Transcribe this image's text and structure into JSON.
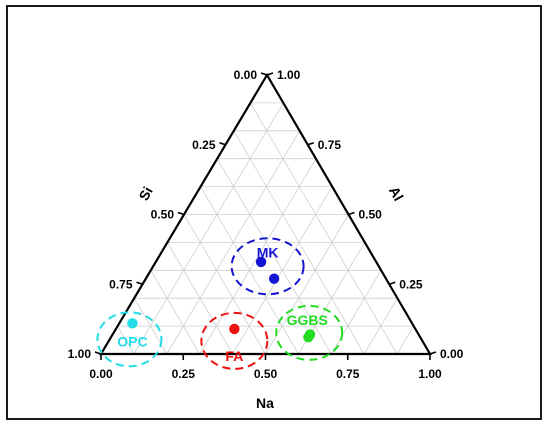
{
  "chart_data": {
    "type": "ternary-scatter",
    "axes": {
      "bottom": {
        "label": "Na",
        "ticks": [
          "0.00",
          "0.25",
          "0.50",
          "0.75",
          "1.00"
        ]
      },
      "left": {
        "label": "Si",
        "ticks": [
          "0.00",
          "0.25",
          "0.50",
          "0.75",
          "1.00"
        ]
      },
      "right": {
        "label": "Al",
        "ticks": [
          "1.00",
          "0.75",
          "0.50",
          "0.25",
          "0.00"
        ]
      }
    },
    "grid": true,
    "grid_step": 0.1,
    "groups": [
      {
        "name": "MK",
        "color": "#1414d2",
        "points": [
          {
            "Na": 0.32,
            "Si": 0.35,
            "Al": 0.33
          },
          {
            "Na": 0.39,
            "Si": 0.34,
            "Al": 0.27
          }
        ]
      },
      {
        "name": "OPC",
        "color": "#22dde8",
        "points": [
          {
            "Na": 0.04,
            "Si": 0.85,
            "Al": 0.11
          }
        ]
      },
      {
        "name": "FA",
        "color": "#ee1111",
        "points": [
          {
            "Na": 0.36,
            "Si": 0.55,
            "Al": 0.09
          }
        ]
      },
      {
        "name": "GGBS",
        "color": "#22dd22",
        "points": [
          {
            "Na": 0.6,
            "Si": 0.33,
            "Al": 0.07
          },
          {
            "Na": 0.6,
            "Si": 0.34,
            "Al": 0.06
          }
        ]
      }
    ]
  }
}
